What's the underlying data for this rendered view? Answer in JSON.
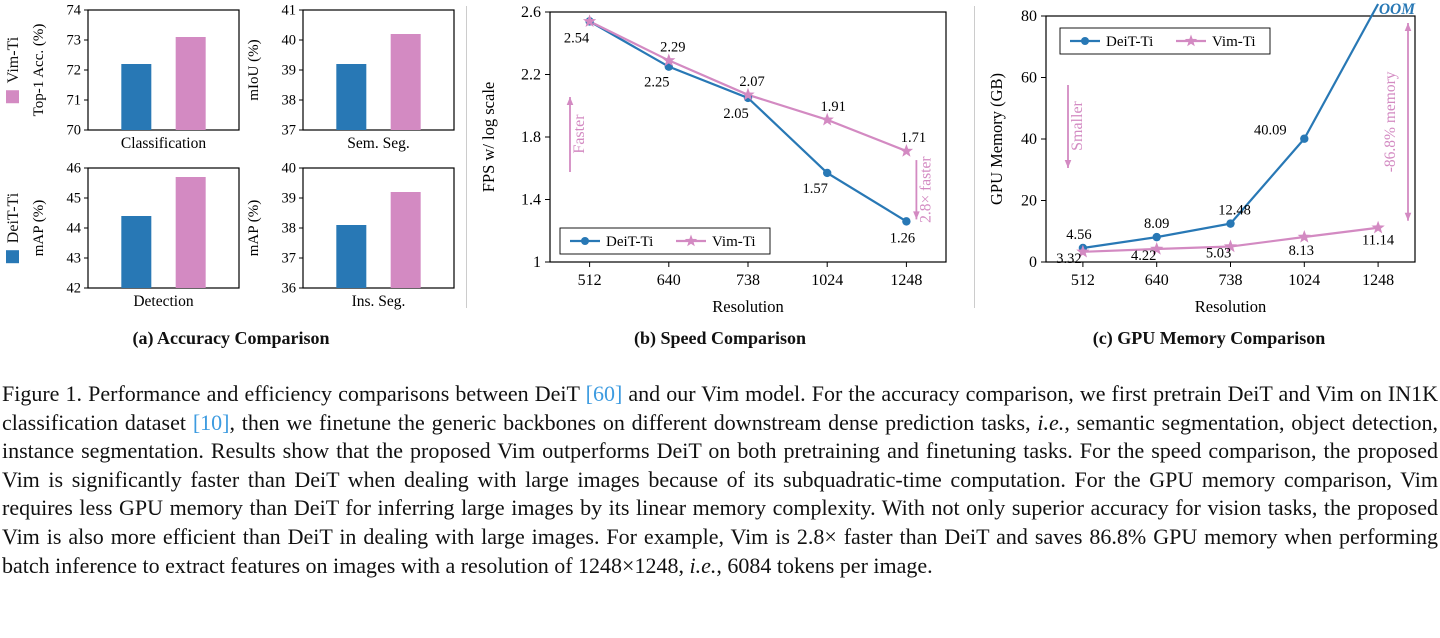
{
  "colors": {
    "deit_blue": "#2878b5",
    "vim_pink": "#d38ac2",
    "cite_blue": "#3d9be0",
    "divider": "#cccccc",
    "series_colors": {
      "DeiT-Ti": "#2878b5",
      "Vim-Ti": "#d38ac2"
    }
  },
  "figure": {
    "outer_legend": {
      "vim": "Vim-Ti",
      "deit": "DeiT-Ti"
    }
  },
  "chart_data": [
    {
      "type": "bar",
      "title": "(a) Accuracy Comparison",
      "series_names": [
        "DeiT-Ti",
        "Vim-Ti"
      ],
      "subplots": [
        {
          "name": "Classification",
          "ylabel": "Top-1 Acc. (%)",
          "ylim": [
            70,
            74
          ],
          "yticks": [
            70,
            71,
            72,
            73,
            74
          ],
          "values": [
            72.2,
            73.1
          ]
        },
        {
          "name": "Sem. Seg.",
          "ylabel": "mIoU (%)",
          "ylim": [
            37,
            41
          ],
          "yticks": [
            37,
            38,
            39,
            40,
            41
          ],
          "values": [
            39.2,
            40.2
          ]
        },
        {
          "name": "Detection",
          "ylabel": "mAP (%)",
          "ylim": [
            42,
            46
          ],
          "yticks": [
            42,
            43,
            44,
            45,
            46
          ],
          "values": [
            44.4,
            45.7
          ]
        },
        {
          "name": "Ins. Seg.",
          "ylabel": "mAP (%)",
          "ylim": [
            36,
            40
          ],
          "yticks": [
            36,
            37,
            38,
            39,
            40
          ],
          "values": [
            38.1,
            39.2
          ]
        }
      ]
    },
    {
      "type": "line",
      "title": "(b) Speed Comparison",
      "xlabel": "Resolution",
      "ylabel": "FPS w/ log scale",
      "categories": [
        "512",
        "640",
        "738",
        "1024",
        "1248"
      ],
      "ylim": [
        1,
        2.6
      ],
      "yticks": [
        1,
        1.4,
        1.8,
        2.2,
        2.6
      ],
      "legend_position": "bottom-left",
      "series": [
        {
          "name": "DeiT-Ti",
          "marker": "circle",
          "values": [
            2.54,
            2.25,
            2.05,
            1.57,
            1.26
          ],
          "labels": [
            "2.54",
            "2.25",
            "2.05",
            "1.57",
            "1.26"
          ]
        },
        {
          "name": "Vim-Ti",
          "marker": "star",
          "values": [
            2.54,
            2.29,
            2.07,
            1.91,
            1.71
          ],
          "labels": [
            null,
            "2.29",
            "2.07",
            "1.91",
            "1.71"
          ]
        }
      ],
      "annotations": {
        "faster": "Faster",
        "speedup": "2.8× faster"
      }
    },
    {
      "type": "line",
      "title": "(c) GPU Memory Comparison",
      "xlabel": "Resolution",
      "ylabel": "GPU Memory (GB)",
      "categories": [
        "512",
        "640",
        "738",
        "1024",
        "1248"
      ],
      "ylim": [
        0,
        80
      ],
      "yticks": [
        0,
        20,
        40,
        60,
        80
      ],
      "legend_position": "top-left",
      "series": [
        {
          "name": "DeiT-Ti",
          "marker": "circle",
          "oom": true,
          "values": [
            4.56,
            8.09,
            12.48,
            40.09,
            null
          ],
          "labels": [
            "4.56",
            "8.09",
            "12.48",
            "40.09",
            null
          ]
        },
        {
          "name": "Vim-Ti",
          "marker": "star",
          "values": [
            3.32,
            4.22,
            5.03,
            8.13,
            11.14
          ],
          "labels": [
            "3.32",
            "4.22",
            "5.03",
            "8.13",
            "11.14"
          ]
        }
      ],
      "annotations": {
        "smaller": "Smaller",
        "saving": "-86.8% memory",
        "oom": "OOM"
      }
    }
  ],
  "caption": {
    "segments": [
      {
        "text": "Figure 1. Performance and efficiency comparisons between DeiT ",
        "style": "n"
      },
      {
        "text": "[60]",
        "style": "cite"
      },
      {
        "text": " and our Vim model. For the accuracy comparison, we first pretrain DeiT and Vim on IN1K classification dataset ",
        "style": "n"
      },
      {
        "text": "[10]",
        "style": "cite"
      },
      {
        "text": ", then we finetune the generic backbones on different downstream dense prediction tasks, ",
        "style": "n"
      },
      {
        "text": "i.e.",
        "style": "i"
      },
      {
        "text": ", semantic segmentation, object detection, instance segmentation. Results show that the proposed Vim outperforms DeiT on both pretraining and finetuning tasks. For the speed comparison, the proposed Vim is significantly faster than DeiT when dealing with large images because of its subquadratic-time computation. For the GPU memory comparison, Vim requires less GPU memory than DeiT for inferring large images by its linear memory complexity. With not only superior accuracy for vision tasks, the proposed Vim is also more efficient than DeiT in dealing with large images. For example, Vim is 2.8× faster than DeiT and saves 86.8% GPU memory when performing batch inference to extract features on images with a resolution of 1248×1248, ",
        "style": "n"
      },
      {
        "text": "i.e.",
        "style": "i"
      },
      {
        "text": ", 6084 tokens per image.",
        "style": "n"
      }
    ]
  }
}
